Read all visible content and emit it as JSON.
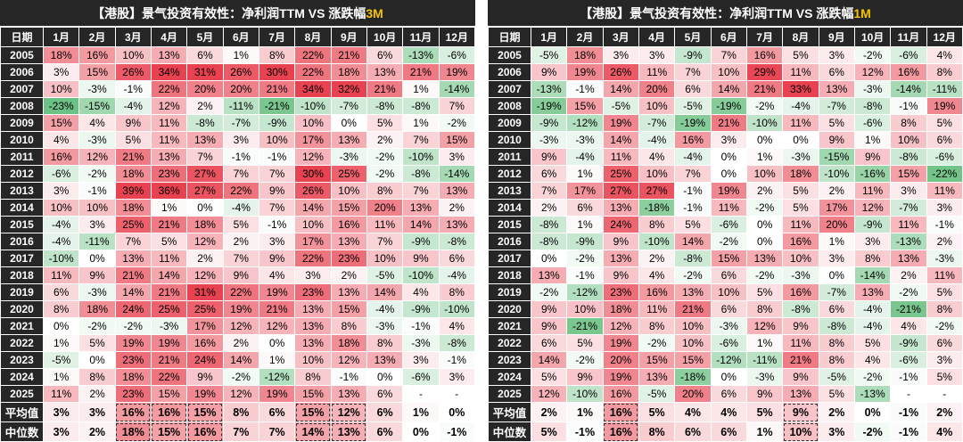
{
  "months": [
    "1月",
    "2月",
    "3月",
    "4月",
    "5月",
    "6月",
    "7月",
    "8月",
    "9月",
    "10月",
    "11月",
    "12月"
  ],
  "row_header": "日期",
  "colors": {
    "header_bg": "#262626",
    "positive": "#e8414f",
    "negative": "#3fae5e",
    "highlight": "#f5c400"
  },
  "chart_data": [
    {
      "type": "table",
      "title_prefix": "【港股】景气投资有效性：净利润TTM VS 涨跌幅",
      "title_highlight": "3M",
      "years": [
        "2005",
        "2006",
        "2007",
        "2008",
        "2009",
        "2010",
        "2011",
        "2012",
        "2013",
        "2014",
        "2015",
        "2016",
        "2017",
        "2018",
        "2019",
        "2020",
        "2021",
        "2022",
        "2023",
        "2024",
        "2025"
      ],
      "rows": [
        [
          "18%",
          "16%",
          "10%",
          "13%",
          "6%",
          "1%",
          "8%",
          "22%",
          "21%",
          "6%",
          "-13%",
          "-6%"
        ],
        [
          "3%",
          "15%",
          "26%",
          "34%",
          "31%",
          "26%",
          "30%",
          "22%",
          "18%",
          "13%",
          "21%",
          "19%"
        ],
        [
          "10%",
          "-3%",
          "-1%",
          "22%",
          "20%",
          "20%",
          "21%",
          "34%",
          "32%",
          "21%",
          "1%",
          "-14%"
        ],
        [
          "-23%",
          "-15%",
          "-4%",
          "12%",
          "2%",
          "-11%",
          "-21%",
          "-10%",
          "-7%",
          "-8%",
          "-8%",
          "7%"
        ],
        [
          "15%",
          "4%",
          "9%",
          "11%",
          "-8%",
          "-7%",
          "-9%",
          "10%",
          "0%",
          "5%",
          "1%",
          "-2%"
        ],
        [
          "4%",
          "-3%",
          "5%",
          "11%",
          "13%",
          "3%",
          "10%",
          "17%",
          "13%",
          "2%",
          "7%",
          "15%"
        ],
        [
          "16%",
          "12%",
          "21%",
          "13%",
          "7%",
          "-1%",
          "-1%",
          "12%",
          "-3%",
          "-2%",
          "-10%",
          "3%"
        ],
        [
          "-6%",
          "-2%",
          "18%",
          "23%",
          "27%",
          "7%",
          "7%",
          "30%",
          "25%",
          "-2%",
          "-8%",
          "-14%"
        ],
        [
          "3%",
          "-1%",
          "39%",
          "36%",
          "27%",
          "22%",
          "9%",
          "26%",
          "10%",
          "8%",
          "7%",
          "13%"
        ],
        [
          "10%",
          "10%",
          "18%",
          "1%",
          "0%",
          "-4%",
          "7%",
          "14%",
          "15%",
          "20%",
          "13%",
          "2%"
        ],
        [
          "-4%",
          "3%",
          "25%",
          "21%",
          "18%",
          "5%",
          "-1%",
          "10%",
          "16%",
          "11%",
          "14%",
          "13%"
        ],
        [
          "-4%",
          "-11%",
          "7%",
          "5%",
          "12%",
          "2%",
          "3%",
          "17%",
          "13%",
          "7%",
          "-9%",
          "-8%"
        ],
        [
          "-10%",
          "0%",
          "13%",
          "11%",
          "2%",
          "7%",
          "9%",
          "22%",
          "23%",
          "10%",
          "9%",
          "6%"
        ],
        [
          "11%",
          "9%",
          "21%",
          "14%",
          "12%",
          "9%",
          "4%",
          "3%",
          "2%",
          "-5%",
          "-10%",
          "-4%"
        ],
        [
          "6%",
          "-3%",
          "14%",
          "21%",
          "31%",
          "22%",
          "19%",
          "23%",
          "13%",
          "14%",
          "4%",
          "8%"
        ],
        [
          "8%",
          "18%",
          "24%",
          "25%",
          "25%",
          "19%",
          "21%",
          "13%",
          "15%",
          "-4%",
          "-9%",
          "-10%"
        ],
        [
          "0%",
          "-2%",
          "-2%",
          "-3%",
          "17%",
          "12%",
          "12%",
          "13%",
          "8%",
          "-3%",
          "-1%",
          "4%"
        ],
        [
          "1%",
          "5%",
          "19%",
          "19%",
          "16%",
          "2%",
          "0%",
          "13%",
          "18%",
          "8%",
          "-3%",
          "-8%"
        ],
        [
          "-5%",
          "0%",
          "23%",
          "21%",
          "24%",
          "14%",
          "1%",
          "10%",
          "12%",
          "13%",
          "3%",
          "-1%"
        ],
        [
          "1%",
          "8%",
          "18%",
          "22%",
          "9%",
          "-2%",
          "-12%",
          "8%",
          "-1%",
          "0%",
          "-6%",
          "3%"
        ],
        [
          "11%",
          "2%",
          "23%",
          "15%",
          "19%",
          "12%",
          "19%",
          "15%",
          "13%",
          "6%",
          "-",
          "-"
        ]
      ],
      "summary": [
        {
          "label": "平均值",
          "values": [
            "3%",
            "3%",
            "16%",
            "16%",
            "15%",
            "8%",
            "6%",
            "15%",
            "12%",
            "6%",
            "1%",
            "0%"
          ]
        },
        {
          "label": "中位数",
          "values": [
            "3%",
            "2%",
            "18%",
            "15%",
            "16%",
            "7%",
            "7%",
            "14%",
            "13%",
            "6%",
            "0%",
            "-1%"
          ]
        }
      ],
      "boxed_months": [
        "3月",
        "4月",
        "5月",
        "8月",
        "9月"
      ]
    },
    {
      "type": "table",
      "title_prefix": "【港股】景气投资有效性：净利润TTM VS 涨跌幅",
      "title_highlight": "1M",
      "years": [
        "2005",
        "2006",
        "2007",
        "2008",
        "2009",
        "2010",
        "2011",
        "2012",
        "2013",
        "2014",
        "2015",
        "2016",
        "2017",
        "2018",
        "2019",
        "2020",
        "2021",
        "2022",
        "2023",
        "2024",
        "2025"
      ],
      "rows": [
        [
          "-5%",
          "18%",
          "3%",
          "3%",
          "-9%",
          "7%",
          "16%",
          "5%",
          "3%",
          "-2%",
          "-6%",
          "4%"
        ],
        [
          "9%",
          "19%",
          "26%",
          "11%",
          "7%",
          "10%",
          "29%",
          "11%",
          "6%",
          "12%",
          "16%",
          "8%"
        ],
        [
          "-13%",
          "-1%",
          "14%",
          "20%",
          "6%",
          "14%",
          "21%",
          "33%",
          "13%",
          "-3%",
          "-14%",
          "-11%"
        ],
        [
          "-19%",
          "15%",
          "-5%",
          "10%",
          "-5%",
          "-19%",
          "-2%",
          "-4%",
          "-7%",
          "-8%",
          "-1%",
          "19%"
        ],
        [
          "-9%",
          "-12%",
          "19%",
          "-7%",
          "-19%",
          "21%",
          "-10%",
          "11%",
          "5%",
          "-6%",
          "8%",
          "5%"
        ],
        [
          "-3%",
          "-3%",
          "14%",
          "-4%",
          "16%",
          "3%",
          "0%",
          "0%",
          "9%",
          "1%",
          "10%",
          "6%"
        ],
        [
          "9%",
          "-4%",
          "11%",
          "4%",
          "-4%",
          "0%",
          "1%",
          "-3%",
          "-15%",
          "9%",
          "-8%",
          "-6%"
        ],
        [
          "6%",
          "1%",
          "25%",
          "10%",
          "7%",
          "0%",
          "10%",
          "18%",
          "-10%",
          "-16%",
          "15%",
          "-22%"
        ],
        [
          "7%",
          "17%",
          "27%",
          "27%",
          "-1%",
          "19%",
          "2%",
          "5%",
          "2%",
          "11%",
          "3%",
          "11%"
        ],
        [
          "2%",
          "6%",
          "13%",
          "-18%",
          "-1%",
          "11%",
          "-2%",
          "5%",
          "17%",
          "12%",
          "-7%",
          "3%"
        ],
        [
          "-8%",
          "1%",
          "24%",
          "8%",
          "5%",
          "-6%",
          "0%",
          "11%",
          "20%",
          "-9%",
          "11%",
          "-1%"
        ],
        [
          "-8%",
          "-9%",
          "9%",
          "-10%",
          "14%",
          "-2%",
          "0%",
          "16%",
          "1%",
          "3%",
          "-13%",
          "2%"
        ],
        [
          "0%",
          "-2%",
          "13%",
          "2%",
          "-8%",
          "15%",
          "13%",
          "10%",
          "3%",
          "8%",
          "13%",
          "-3%"
        ],
        [
          "13%",
          "-1%",
          "9%",
          "4%",
          "-2%",
          "6%",
          "-2%",
          "-3%",
          "0%",
          "-14%",
          "2%",
          "11%"
        ],
        [
          "-2%",
          "-12%",
          "23%",
          "16%",
          "13%",
          "10%",
          "5%",
          "16%",
          "-7%",
          "13%",
          "-2%",
          "5%"
        ],
        [
          "9%",
          "10%",
          "18%",
          "11%",
          "21%",
          "6%",
          "8%",
          "-8%",
          "6%",
          "-4%",
          "-21%",
          "8%"
        ],
        [
          "9%",
          "-21%",
          "12%",
          "8%",
          "10%",
          "-3%",
          "12%",
          "9%",
          "-8%",
          "-4%",
          "4%",
          "-2%"
        ],
        [
          "6%",
          "5%",
          "19%",
          "-2%",
          "10%",
          "-6%",
          "1%",
          "11%",
          "8%",
          "5%",
          "-9%",
          "6%"
        ],
        [
          "14%",
          "-2%",
          "20%",
          "15%",
          "15%",
          "-12%",
          "-11%",
          "21%",
          "8%",
          "4%",
          "-6%",
          "3%"
        ],
        [
          "5%",
          "9%",
          "19%",
          "13%",
          "-18%",
          "0%",
          "-3%",
          "9%",
          "-5%",
          "-2%",
          "-1%",
          "5%"
        ],
        [
          "12%",
          "-10%",
          "16%",
          "-5%",
          "20%",
          "6%",
          "9%",
          "13%",
          "5%",
          "-13%",
          "-",
          "-"
        ]
      ],
      "summary": [
        {
          "label": "平均值",
          "values": [
            "2%",
            "1%",
            "16%",
            "5%",
            "4%",
            "4%",
            "5%",
            "9%",
            "2%",
            "0%",
            "-1%",
            "2%"
          ]
        },
        {
          "label": "中位数",
          "values": [
            "5%",
            "-1%",
            "16%",
            "8%",
            "6%",
            "6%",
            "1%",
            "10%",
            "3%",
            "-2%",
            "-1%",
            "4%"
          ]
        }
      ],
      "boxed_months": [
        "3月",
        "8月"
      ]
    }
  ]
}
